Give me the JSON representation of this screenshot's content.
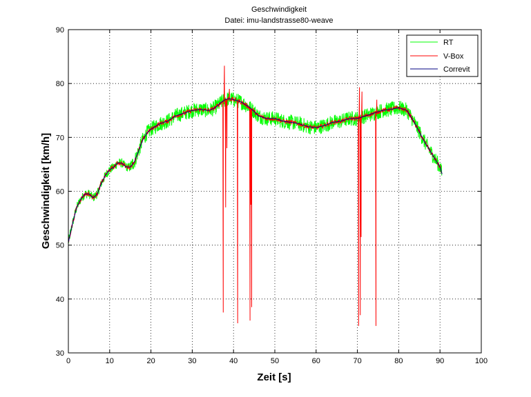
{
  "chart_data": {
    "type": "line",
    "title": "Geschwindigkeit",
    "subtitle": "Datei: imu-landstrasse80-weave",
    "xlabel": "Zeit [s]",
    "ylabel": "Geschwindigkeit [km/h]",
    "xlim": [
      0,
      100
    ],
    "ylim": [
      30,
      90
    ],
    "xticks": [
      "0",
      "10",
      "20",
      "30",
      "40",
      "50",
      "60",
      "70",
      "80",
      "90",
      "100"
    ],
    "yticks": [
      "30",
      "40",
      "50",
      "60",
      "70",
      "80",
      "90"
    ],
    "grid": true,
    "legend_position": "top-right",
    "colors": {
      "RT": "#00ff00",
      "V-Box": "#ff0000",
      "Correvit": "#000080"
    },
    "base_profile": {
      "x": [
        0,
        1,
        2,
        3,
        4,
        5,
        6,
        7,
        8,
        9,
        10,
        11,
        12,
        13,
        14,
        15,
        16,
        17,
        18,
        19,
        20,
        22,
        24,
        26,
        28,
        30,
        32,
        34,
        35,
        36,
        37,
        38,
        39,
        40,
        41,
        42,
        43,
        44,
        45,
        46,
        48,
        50,
        52,
        54,
        56,
        58,
        60,
        62,
        64,
        66,
        68,
        70,
        72,
        74,
        76,
        78,
        80,
        82,
        84,
        86,
        88,
        90,
        90.5
      ],
      "y": [
        50.5,
        54,
        57,
        58.5,
        59.5,
        59.5,
        58.8,
        59.5,
        61.5,
        63,
        64,
        64.5,
        65.3,
        65.2,
        64.5,
        64.5,
        65.5,
        67.5,
        69.5,
        70.8,
        71.5,
        72.5,
        73,
        74,
        74.5,
        75,
        75.2,
        75,
        75.3,
        75.8,
        76.5,
        77,
        77.2,
        77,
        76.8,
        76.5,
        76,
        75.5,
        74.8,
        74,
        73.5,
        73.5,
        73,
        72.8,
        72.5,
        72,
        71.8,
        72.2,
        72.8,
        73,
        73.5,
        73.5,
        74,
        74.5,
        75,
        75.2,
        75.5,
        75,
        72.5,
        69.5,
        67,
        64.5,
        63.2
      ]
    },
    "series": [
      {
        "name": "RT",
        "noise_amplitude": 1.4
      },
      {
        "name": "V-Box",
        "noise_amplitude": 0.4,
        "spikes": [
          {
            "x": 37.5,
            "y": 37.5
          },
          {
            "x": 37.8,
            "y": 83.3
          },
          {
            "x": 38.1,
            "y": 57.0
          },
          {
            "x": 38.4,
            "y": 68.0
          },
          {
            "x": 39.0,
            "y": 79.0
          },
          {
            "x": 41.0,
            "y": 35.5
          },
          {
            "x": 44.0,
            "y": 36.0
          },
          {
            "x": 44.2,
            "y": 57.5
          },
          {
            "x": 44.4,
            "y": 38.5
          },
          {
            "x": 70.3,
            "y": 35.0
          },
          {
            "x": 70.5,
            "y": 79.3
          },
          {
            "x": 70.7,
            "y": 37.0
          },
          {
            "x": 70.9,
            "y": 51.5
          },
          {
            "x": 71.1,
            "y": 78.5
          },
          {
            "x": 74.5,
            "y": 35.0
          },
          {
            "x": 74.7,
            "y": 77.0
          }
        ]
      },
      {
        "name": "Correvit",
        "noise_amplitude": 0.0
      }
    ]
  }
}
